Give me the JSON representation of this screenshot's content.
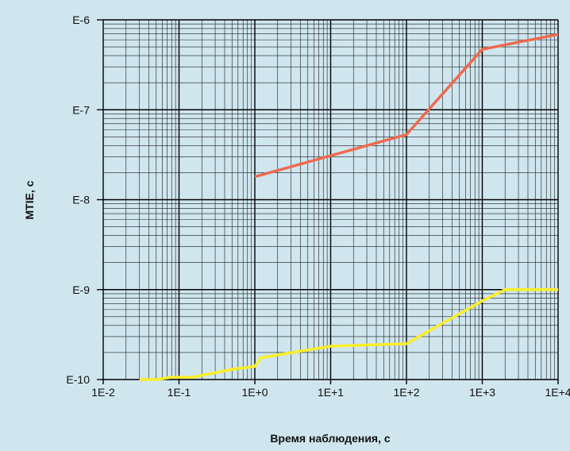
{
  "chart_data": {
    "type": "line",
    "xlabel": "Время наблюдения, с",
    "ylabel": "MTIE, с",
    "x_scale": "log",
    "y_scale": "log",
    "xlim": [
      0.01,
      10000
    ],
    "ylim": [
      1e-10,
      1e-06
    ],
    "x_ticks": [
      {
        "value": 0.01,
        "label": "1E-2"
      },
      {
        "value": 0.1,
        "label": "1E-1"
      },
      {
        "value": 1,
        "label": "1E+0"
      },
      {
        "value": 10,
        "label": "1E+1"
      },
      {
        "value": 100,
        "label": "1E+2"
      },
      {
        "value": 1000,
        "label": "1E+3"
      },
      {
        "value": 10000,
        "label": "1E+4"
      }
    ],
    "y_ticks": [
      {
        "value": 1e-06,
        "label": "E-6"
      },
      {
        "value": 1e-07,
        "label": "E-7"
      },
      {
        "value": 1e-08,
        "label": "E-8"
      },
      {
        "value": 1e-09,
        "label": "E-9"
      },
      {
        "value": 1e-10,
        "label": "E-10"
      }
    ],
    "grid": true,
    "series": [
      {
        "color": "#ef6a4f",
        "points": [
          [
            1,
            1.8e-08
          ],
          [
            100,
            5.3e-08
          ],
          [
            1000,
            4.7e-07
          ],
          [
            10000,
            6.9e-07
          ]
        ]
      },
      {
        "color": "#f9ee2a",
        "points": [
          [
            0.03,
            1e-10
          ],
          [
            0.05,
            1e-10
          ],
          [
            0.08,
            1.06e-10
          ],
          [
            0.15,
            1.06e-10
          ],
          [
            0.5,
            1.3e-10
          ],
          [
            1,
            1.4e-10
          ],
          [
            1.2,
            1.75e-10
          ],
          [
            10,
            2.35e-10
          ],
          [
            100,
            2.5e-10
          ],
          [
            1000,
            7.5e-10
          ],
          [
            2000,
            1e-09
          ],
          [
            10000,
            1e-09
          ]
        ]
      }
    ]
  }
}
